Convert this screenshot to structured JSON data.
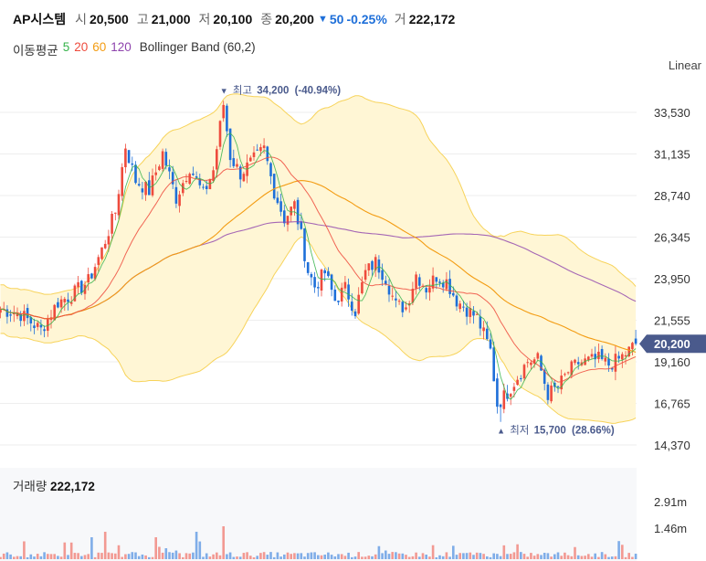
{
  "header": {
    "name": "AP시스템",
    "open_label": "시",
    "open": "20,500",
    "high_label": "고",
    "high": "21,000",
    "low_label": "저",
    "low": "20,100",
    "close_label": "종",
    "close": "20,200",
    "change_arrow": "▼",
    "change": "50",
    "change_pct": "-0.25%",
    "volume_label": "거",
    "volume": "222,172"
  },
  "indicators": {
    "ma_label": "이동평균",
    "ma": [
      {
        "period": "5",
        "color": "#35b34a"
      },
      {
        "period": "20",
        "color": "#ee4b3d"
      },
      {
        "period": "60",
        "color": "#f39c12"
      },
      {
        "period": "120",
        "color": "#8e44ad"
      }
    ],
    "bb_label": "Bollinger Band (60,2)"
  },
  "scale_mode": "Linear",
  "current_price_tag": "20,200",
  "volume_panel": {
    "title": "거래량",
    "value": "222,172",
    "ticks": [
      "2.91m",
      "1.46m"
    ]
  },
  "colors": {
    "up": "#ee4b3d",
    "down": "#1e6fd9",
    "band_fill": "#fff6d5",
    "band_line": "#f7d35a",
    "tag_bg": "#4a5a8c"
  },
  "chart_data": {
    "type": "candlestick",
    "y_ticks": [
      33530,
      31135,
      28740,
      26345,
      23950,
      21555,
      19160,
      16765,
      14370
    ],
    "ylim": [
      13600,
      36200
    ],
    "max_annotation": {
      "arrow": "▼",
      "label": "최고",
      "value": "34,200",
      "pct": "(-40.94%)"
    },
    "min_annotation": {
      "arrow": "▲",
      "label": "최저",
      "value": "15,700",
      "pct": "(28.66%)"
    },
    "price_path": [
      [
        0,
        22200
      ],
      [
        6,
        21900
      ],
      [
        12,
        21000
      ],
      [
        17,
        22600
      ],
      [
        21,
        23000
      ],
      [
        26,
        23800
      ],
      [
        30,
        25600
      ],
      [
        34,
        27800
      ],
      [
        37,
        31600
      ],
      [
        40,
        29600
      ],
      [
        44,
        29000
      ],
      [
        48,
        31200
      ],
      [
        52,
        28600
      ],
      [
        56,
        30400
      ],
      [
        60,
        28800
      ],
      [
        63,
        30200
      ],
      [
        66,
        34000
      ],
      [
        68,
        31000
      ],
      [
        71,
        30000
      ],
      [
        75,
        30800
      ],
      [
        78,
        31400
      ],
      [
        81,
        29000
      ],
      [
        84,
        27400
      ],
      [
        87,
        28200
      ],
      [
        89,
        26400
      ],
      [
        91,
        24400
      ],
      [
        93,
        23500
      ],
      [
        96,
        24300
      ],
      [
        99,
        22700
      ],
      [
        102,
        23400
      ],
      [
        105,
        22100
      ],
      [
        108,
        24300
      ],
      [
        111,
        24900
      ],
      [
        114,
        24000
      ],
      [
        117,
        22400
      ],
      [
        120,
        22300
      ],
      [
        123,
        24200
      ],
      [
        126,
        23400
      ],
      [
        129,
        24100
      ],
      [
        132,
        23800
      ],
      [
        135,
        22700
      ],
      [
        138,
        22200
      ],
      [
        141,
        21700
      ],
      [
        145,
        19800
      ],
      [
        147,
        16700
      ],
      [
        150,
        17400
      ],
      [
        153,
        18300
      ],
      [
        156,
        19200
      ],
      [
        159,
        19300
      ],
      [
        162,
        17300
      ],
      [
        165,
        17700
      ],
      [
        168,
        18600
      ],
      [
        171,
        19100
      ],
      [
        174,
        19200
      ],
      [
        177,
        19300
      ],
      [
        180,
        19000
      ],
      [
        183,
        19300
      ],
      [
        186,
        19800
      ],
      [
        188,
        20200
      ]
    ]
  }
}
